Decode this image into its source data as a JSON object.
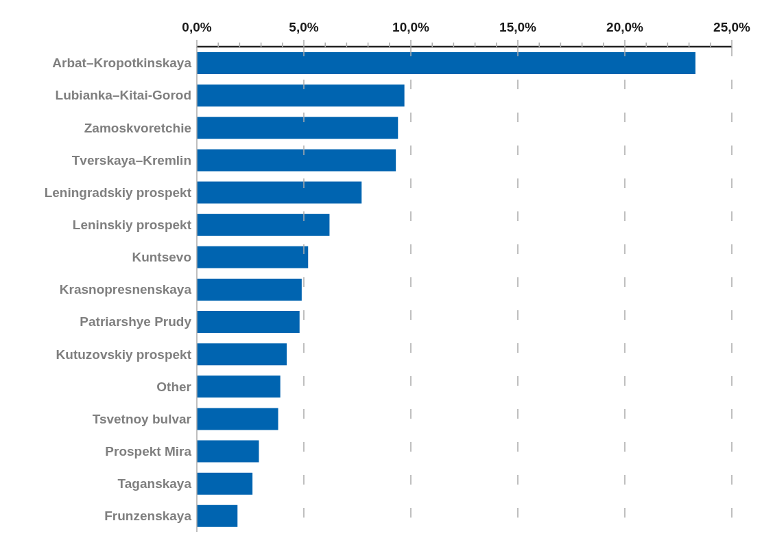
{
  "chart_data": {
    "type": "bar",
    "orientation": "horizontal",
    "categories": [
      "Arbat–Kropotkinskaya",
      "Lubianka–Kitai-Gorod",
      "Zamoskvoretchie",
      "Tverskaya–Kremlin",
      "Leningradskiy prospekt",
      "Leninskiy prospekt",
      "Kuntsevo",
      "Krasnopresnenskaya",
      "Patriarshye Prudy",
      "Kutuzovskiy prospekt",
      "Other",
      "Tsvetnoy bulvar",
      "Prospekt Mira",
      "Taganskaya",
      "Frunzenskaya"
    ],
    "values": [
      23.3,
      9.7,
      9.4,
      9.3,
      7.7,
      6.2,
      5.2,
      4.9,
      4.8,
      4.2,
      3.9,
      3.8,
      2.9,
      2.6,
      1.9
    ],
    "color": "#0064b0",
    "xlim": [
      0,
      25
    ],
    "xticks": [
      {
        "value": 0,
        "label": "0,0%"
      },
      {
        "value": 1,
        "label": null
      },
      {
        "value": 2,
        "label": null
      },
      {
        "value": 3,
        "label": null
      },
      {
        "value": 4,
        "label": null
      },
      {
        "value": 5,
        "label": "5,0%"
      },
      {
        "value": 6,
        "label": null
      },
      {
        "value": 7,
        "label": null
      },
      {
        "value": 8,
        "label": null
      },
      {
        "value": 9,
        "label": null
      },
      {
        "value": 10,
        "label": "10,0%"
      },
      {
        "value": 11,
        "label": null
      },
      {
        "value": 12,
        "label": null
      },
      {
        "value": 13,
        "label": null
      },
      {
        "value": 14,
        "label": null
      },
      {
        "value": 15,
        "label": "15,0%"
      },
      {
        "value": 16,
        "label": null
      },
      {
        "value": 17,
        "label": null
      },
      {
        "value": 18,
        "label": null
      },
      {
        "value": 19,
        "label": null
      },
      {
        "value": 20,
        "label": "20,0%"
      },
      {
        "value": 21,
        "label": null
      },
      {
        "value": 22,
        "label": null
      },
      {
        "value": 23,
        "label": null
      },
      {
        "value": 24,
        "label": null
      },
      {
        "value": 25,
        "label": "25,0%"
      }
    ],
    "grid": "x"
  }
}
